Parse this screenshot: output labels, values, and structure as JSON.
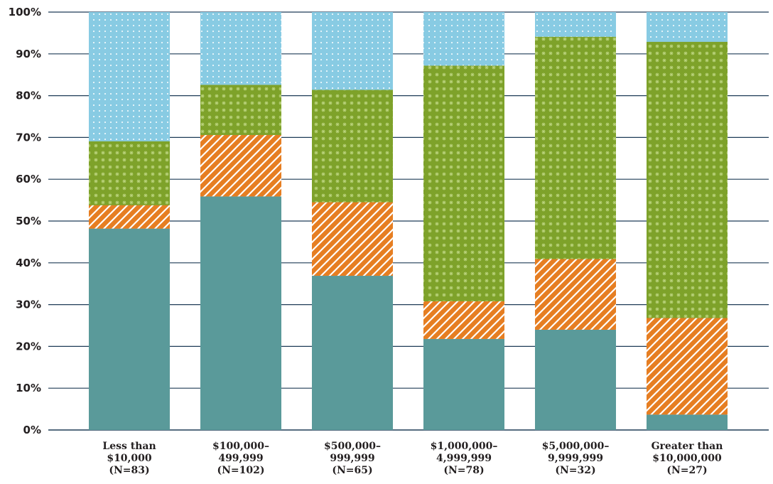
{
  "chart_data": {
    "type": "bar",
    "stacked": true,
    "title": "",
    "xlabel": "",
    "ylabel": "",
    "ylim": [
      0,
      100
    ],
    "yticks": [
      "0%",
      "10%",
      "20%",
      "30%",
      "40%",
      "50%",
      "60%",
      "70%",
      "80%",
      "90%",
      "100%"
    ],
    "categories": [
      [
        "Less than",
        "$10,000",
        "(N=83)"
      ],
      [
        "$100,000–",
        "499,999",
        "(N=102)"
      ],
      [
        "$500,000–",
        "999,999",
        "(N=65)"
      ],
      [
        "$1,000,000–",
        "4,999,999",
        "(N=78)"
      ],
      [
        "$5,000,000–",
        "9,999,999",
        "(N=32)"
      ],
      [
        "Greater than",
        "$10,000,000",
        "(N=27)"
      ]
    ],
    "series": [
      {
        "color": "#5a9a9a",
        "pattern": "solid",
        "values": [
          48.2,
          55.9,
          36.9,
          21.8,
          24.0,
          3.7
        ]
      },
      {
        "color": "#e67e22",
        "pattern": "diagonal-stripes",
        "values": [
          5.6,
          14.7,
          17.6,
          9.0,
          16.9,
          23.1
        ]
      },
      {
        "color": "#7ea22a",
        "pattern": "stars",
        "values": [
          15.3,
          12.0,
          26.9,
          56.4,
          53.2,
          66.1
        ]
      },
      {
        "color": "#88cbe3",
        "pattern": "dots",
        "values": [
          30.9,
          17.4,
          18.6,
          12.8,
          5.9,
          7.1
        ]
      }
    ],
    "grid": true,
    "legend": "none"
  }
}
